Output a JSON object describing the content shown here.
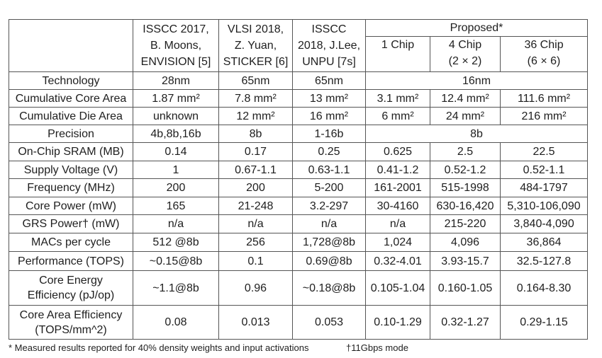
{
  "table": {
    "header": {
      "columns": [
        [
          "ISSCC 2017,",
          "B. Moons,",
          "ENVISION [5]"
        ],
        [
          "VLSI 2018,",
          "Z. Yuan,",
          "STICKER [6]"
        ],
        [
          "ISSCC",
          "2018, J.Lee,",
          "UNPU [7s]"
        ]
      ],
      "group": "Proposed*",
      "subcolumns": [
        [
          "1 Chip"
        ],
        [
          "4 Chip",
          "(2 × 2)"
        ],
        [
          "36 Chip",
          "(6 × 6)"
        ]
      ]
    },
    "rows": [
      {
        "label": [
          "Technology"
        ],
        "cells": [
          "28nm",
          "65nm",
          "65nm",
          "16nm"
        ]
      },
      {
        "label": [
          "Cumulative Core Area"
        ],
        "cells": [
          "1.87 mm²",
          "7.8 mm²",
          "13 mm²",
          "3.1 mm²",
          "12.4 mm²",
          "111.6 mm²"
        ]
      },
      {
        "label": [
          "Cumulative Die Area"
        ],
        "cells": [
          "unknown",
          "12 mm²",
          "16 mm²",
          "6 mm²",
          "24 mm²",
          "216 mm²"
        ]
      },
      {
        "label": [
          "Precision"
        ],
        "cells": [
          "4b,8b,16b",
          "8b",
          "1-16b",
          "8b"
        ]
      },
      {
        "label": [
          "On-Chip SRAM (MB)"
        ],
        "cells": [
          "0.14",
          "0.17",
          "0.25",
          "0.625",
          "2.5",
          "22.5"
        ]
      },
      {
        "label": [
          "Supply Voltage (V)"
        ],
        "cells": [
          "1",
          "0.67-1.1",
          "0.63-1.1",
          "0.41-1.2",
          "0.52-1.2",
          "0.52-1.1"
        ]
      },
      {
        "label": [
          "Frequency (MHz)"
        ],
        "cells": [
          "200",
          "200",
          "5-200",
          "161-2001",
          "515-1998",
          "484-1797"
        ]
      },
      {
        "label": [
          "Core Power (mW)"
        ],
        "cells": [
          "165",
          "21-248",
          "3.2-297",
          "30-4160",
          "630-16,420",
          "5,310-106,090"
        ]
      },
      {
        "label": [
          "GRS Power† (mW)"
        ],
        "cells": [
          "n/a",
          "n/a",
          "n/a",
          "n/a",
          "215-220",
          "3,840-4,090"
        ]
      },
      {
        "label": [
          "MACs per cycle"
        ],
        "cells": [
          "512 @8b",
          "256",
          "1,728@8b",
          "1,024",
          "4,096",
          "36,864"
        ]
      },
      {
        "label": [
          "Performance (TOPS)"
        ],
        "cells": [
          "~0.15@8b",
          "0.1",
          "0.69@8b",
          "0.32-4.01",
          "3.93-15.7",
          "32.5-127.8"
        ]
      },
      {
        "label": [
          "Core Energy",
          "Efficiency (pJ/op)"
        ],
        "cells": [
          "~1.1@8b",
          "0.96",
          "~0.18@8b",
          "0.105-1.04",
          "0.160-1.05",
          "0.164-8.30"
        ]
      },
      {
        "label": [
          "Core Area Efficiency",
          "(TOPS/mm^2)"
        ],
        "cells": [
          "0.08",
          "0.013",
          "0.053",
          "0.10-1.29",
          "0.32-1.27",
          "0.29-1.15"
        ]
      }
    ]
  },
  "footnotes": [
    "* Measured results reported for 40% density weights and input activations",
    "†11Gbps mode"
  ]
}
